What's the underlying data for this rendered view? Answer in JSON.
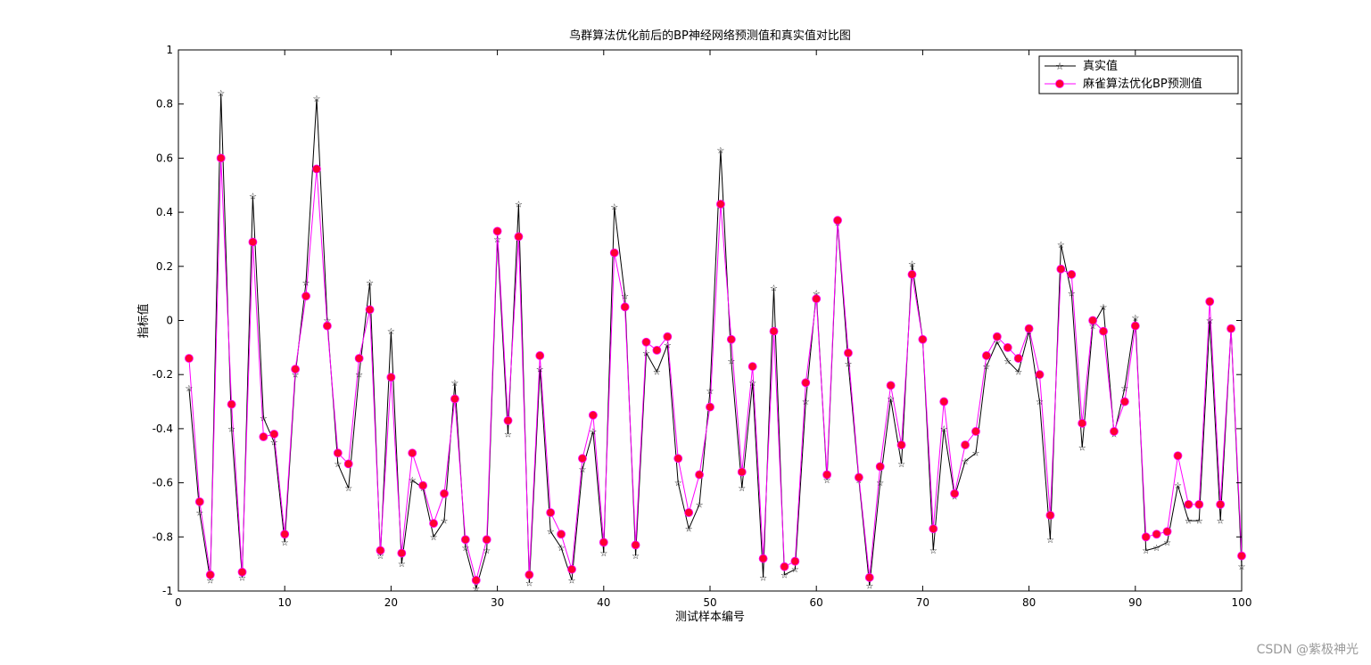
{
  "chart_data": {
    "type": "line",
    "title": "鸟群算法优化前后的BP神经网络预测值和真实值对比图",
    "xlabel": "测试样本编号",
    "ylabel": "指标值",
    "xlim": [
      0,
      100
    ],
    "ylim": [
      -1,
      1
    ],
    "xticks": [
      "0",
      "10",
      "20",
      "30",
      "40",
      "50",
      "60",
      "70",
      "80",
      "90",
      "100"
    ],
    "yticks": [
      "-1",
      "-0.8",
      "-0.6",
      "-0.4",
      "-0.2",
      "0",
      "0.2",
      "0.4",
      "0.6",
      "0.8",
      "1"
    ],
    "grid": false,
    "legend_position": "top-right",
    "x": [
      1,
      2,
      3,
      4,
      5,
      6,
      7,
      8,
      9,
      10,
      11,
      12,
      13,
      14,
      15,
      16,
      17,
      18,
      19,
      20,
      21,
      22,
      23,
      24,
      25,
      26,
      27,
      28,
      29,
      30,
      31,
      32,
      33,
      34,
      35,
      36,
      37,
      38,
      39,
      40,
      41,
      42,
      43,
      44,
      45,
      46,
      47,
      48,
      49,
      50,
      51,
      52,
      53,
      54,
      55,
      56,
      57,
      58,
      59,
      60,
      61,
      62,
      63,
      64,
      65,
      66,
      67,
      68,
      69,
      70,
      71,
      72,
      73,
      74,
      75,
      76,
      77,
      78,
      79,
      80,
      81,
      82,
      83,
      84,
      85,
      86,
      87,
      88,
      89,
      90,
      91,
      92,
      93,
      94,
      95,
      96,
      97,
      98,
      99,
      100
    ],
    "series": [
      {
        "name": "真实值",
        "color": "#000000",
        "marker": "star",
        "values": [
          -0.25,
          -0.71,
          -0.96,
          0.84,
          -0.4,
          -0.95,
          0.46,
          -0.36,
          -0.45,
          -0.82,
          -0.2,
          0.14,
          0.82,
          -0.0,
          -0.53,
          -0.62,
          -0.2,
          0.14,
          -0.87,
          -0.04,
          -0.9,
          -0.59,
          -0.62,
          -0.8,
          -0.74,
          -0.23,
          -0.84,
          -0.99,
          -0.85,
          0.3,
          -0.42,
          0.43,
          -0.97,
          -0.18,
          -0.78,
          -0.84,
          -0.96,
          -0.55,
          -0.41,
          -0.86,
          0.42,
          0.09,
          -0.87,
          -0.12,
          -0.19,
          -0.09,
          -0.6,
          -0.77,
          -0.68,
          -0.26,
          0.63,
          -0.15,
          -0.62,
          -0.23,
          -0.95,
          0.12,
          -0.94,
          -0.92,
          -0.3,
          0.1,
          -0.59,
          0.36,
          -0.16,
          -0.59,
          -0.98,
          -0.6,
          -0.29,
          -0.53,
          0.21,
          -0.07,
          -0.85,
          -0.4,
          -0.65,
          -0.52,
          -0.49,
          -0.17,
          -0.08,
          -0.15,
          -0.19,
          -0.04,
          -0.3,
          -0.81,
          0.28,
          0.1,
          -0.47,
          -0.02,
          0.05,
          -0.42,
          -0.25,
          0.01,
          -0.85,
          -0.84,
          -0.82,
          -0.61,
          -0.74,
          -0.74,
          -0.0,
          -0.74,
          -0.03,
          -0.91
        ]
      },
      {
        "name": "麻雀算法优化BP预测值",
        "color": "#ff00ff",
        "marker_color": "#ff0033",
        "marker": "circle",
        "values": [
          -0.14,
          -0.67,
          -0.94,
          0.6,
          -0.31,
          -0.93,
          0.29,
          -0.43,
          -0.42,
          -0.79,
          -0.18,
          0.09,
          0.56,
          -0.02,
          -0.49,
          -0.53,
          -0.14,
          0.04,
          -0.85,
          -0.21,
          -0.86,
          -0.49,
          -0.61,
          -0.75,
          -0.64,
          -0.29,
          -0.81,
          -0.96,
          -0.81,
          0.33,
          -0.37,
          0.31,
          -0.94,
          -0.13,
          -0.71,
          -0.79,
          -0.92,
          -0.51,
          -0.35,
          -0.82,
          0.25,
          0.05,
          -0.83,
          -0.08,
          -0.11,
          -0.06,
          -0.51,
          -0.71,
          -0.57,
          -0.32,
          0.43,
          -0.07,
          -0.56,
          -0.17,
          -0.88,
          -0.04,
          -0.91,
          -0.89,
          -0.23,
          0.08,
          -0.57,
          0.37,
          -0.12,
          -0.58,
          -0.95,
          -0.54,
          -0.24,
          -0.46,
          0.17,
          -0.07,
          -0.77,
          -0.3,
          -0.64,
          -0.46,
          -0.41,
          -0.13,
          -0.06,
          -0.1,
          -0.14,
          -0.03,
          -0.2,
          -0.72,
          0.19,
          0.17,
          -0.38,
          -0.0,
          -0.04,
          -0.41,
          -0.3,
          -0.02,
          -0.8,
          -0.79,
          -0.78,
          -0.5,
          -0.68,
          -0.68,
          0.07,
          -0.68,
          -0.03,
          -0.87
        ]
      }
    ]
  },
  "watermark": "CSDN @紫极神光"
}
